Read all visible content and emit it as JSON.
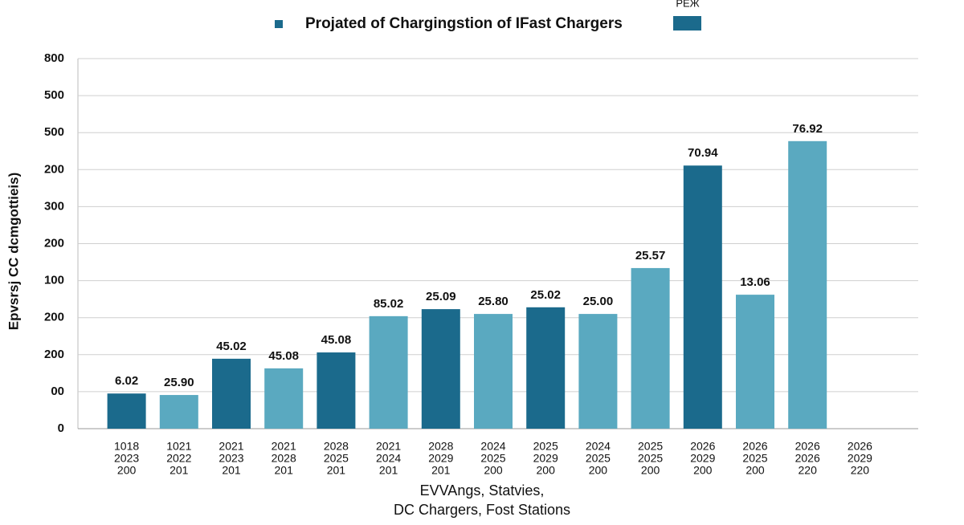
{
  "chart_data": {
    "type": "bar",
    "title": "Projated of Chargingstion of IFast Chargers",
    "legend": {
      "label": "PEЖ",
      "color": "#1b6a8c"
    },
    "y_label": "Epvsrsj CC dcmgottieis)",
    "x_label": [
      "EVVAngs, Statvies,",
      "DC Chargers, Fost Stations"
    ],
    "categories": [
      [
        "1018",
        "2023",
        "200"
      ],
      [
        "1021",
        "2022",
        "201"
      ],
      [
        "2021",
        "2023",
        "201"
      ],
      [
        "2021",
        "2028",
        "201"
      ],
      [
        "2028",
        "2025",
        "201"
      ],
      [
        "2021",
        "2024",
        "201"
      ],
      [
        "2028",
        "2029",
        "201"
      ],
      [
        "2024",
        "2025",
        "200"
      ],
      [
        "2025",
        "2029",
        "200"
      ],
      [
        "2024",
        "2025",
        "200"
      ],
      [
        "2025",
        "2025",
        "200"
      ],
      [
        "2026",
        "2029",
        "200"
      ],
      [
        "2026",
        "2025",
        "200"
      ],
      [
        "2026",
        "2026",
        "220"
      ],
      [
        "2026",
        "2029",
        "220"
      ]
    ],
    "values": [
      0.95,
      0.91,
      1.89,
      1.63,
      2.06,
      3.04,
      3.23,
      3.1,
      3.28,
      3.1,
      4.34,
      7.11,
      3.62,
      7.77,
      null
    ],
    "annotations": [
      "6.02",
      "25.90",
      "45.02",
      "45.08",
      "45.08",
      "85.02",
      "25.09",
      "25.80",
      "25.02",
      "25.00",
      "25.57",
      "70.94",
      "13.06",
      "76.92",
      null
    ],
    "colors": [
      "#1b6a8c",
      "#5aa9c0",
      "#1b6a8c",
      "#5aa9c0",
      "#1b6a8c",
      "#5aa9c0",
      "#1b6a8c",
      "#5aa9c0",
      "#1b6a8c",
      "#5aa9c0",
      "#5aa9c0",
      "#1b6a8c",
      "#5aa9c0",
      "#5aa9c0",
      "#5aa9c0"
    ],
    "ylim": [
      0,
      10
    ],
    "yticks": [
      {
        "value": 0,
        "label": "0"
      },
      {
        "value": 1,
        "label": "00"
      },
      {
        "value": 2,
        "label": "200"
      },
      {
        "value": 3,
        "label": "200"
      },
      {
        "value": 4,
        "label": "100"
      },
      {
        "value": 5,
        "label": "200"
      },
      {
        "value": 6,
        "label": "300"
      },
      {
        "value": 7,
        "label": "200"
      },
      {
        "value": 8,
        "label": "500"
      },
      {
        "value": 9,
        "label": "500"
      },
      {
        "value": 10,
        "label": "800"
      }
    ],
    "grid": true
  }
}
